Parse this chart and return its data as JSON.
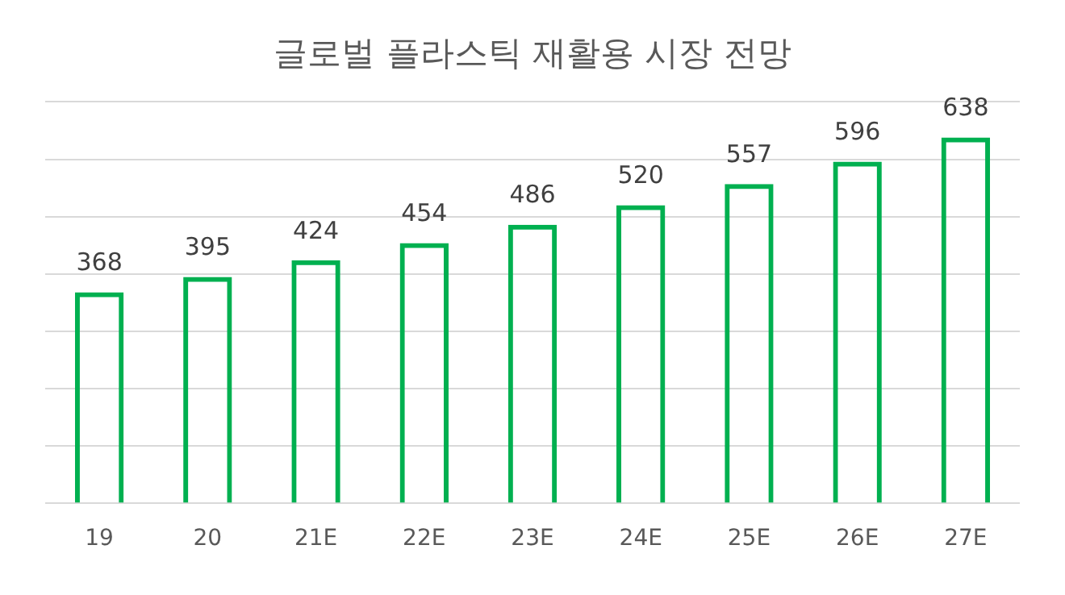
{
  "chart_data": {
    "type": "bar",
    "title": "글로벌 플라스틱 재활용 시장 전망",
    "categories": [
      "19",
      "20",
      "21E",
      "22E",
      "23E",
      "24E",
      "25E",
      "26E",
      "27E"
    ],
    "values": [
      368,
      395,
      424,
      454,
      486,
      520,
      557,
      596,
      638
    ],
    "color": "#00b050",
    "ylim": [
      0,
      700
    ],
    "yticks": [
      {
        "value": 0,
        "label": null
      },
      {
        "value": 100,
        "label": null
      },
      {
        "value": 200,
        "label": null
      },
      {
        "value": 300,
        "label": null
      },
      {
        "value": 400,
        "label": null
      },
      {
        "value": 500,
        "label": null
      },
      {
        "value": 600,
        "label": null
      },
      {
        "value": 700,
        "label": null
      }
    ],
    "tick_labels": "x",
    "grid": "y",
    "data_labels": true,
    "legend": false
  }
}
